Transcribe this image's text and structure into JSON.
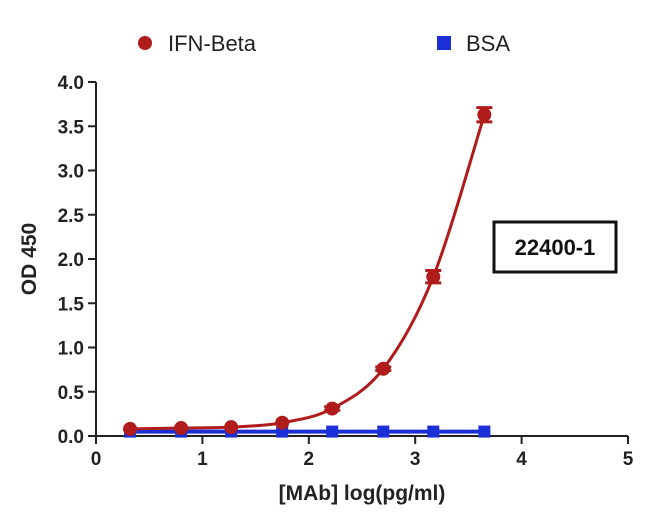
{
  "chart_data": {
    "type": "scatter",
    "xlabel": "[MAb] log(pg/ml)",
    "ylabel": "OD 450",
    "xlim": [
      0,
      5
    ],
    "ylim": [
      0,
      4
    ],
    "x_ticks": [
      0,
      1,
      2,
      3,
      4,
      5
    ],
    "y_ticks": [
      0.0,
      0.5,
      1.0,
      1.5,
      2.0,
      2.5,
      3.0,
      3.5,
      4.0
    ],
    "x_tick_labels": [
      "0",
      "1",
      "2",
      "3",
      "4",
      "5"
    ],
    "y_tick_labels": [
      "0.0",
      "0.5",
      "1.0",
      "1.5",
      "2.0",
      "2.5",
      "3.0",
      "3.5",
      "4.0"
    ],
    "grid": false,
    "legend_position": "top",
    "annotation": "22400-1",
    "series": [
      {
        "name": "IFN-Beta",
        "marker": "circle",
        "color": "#b01c1c",
        "x": [
          0.32,
          0.8,
          1.27,
          1.75,
          2.22,
          2.7,
          3.17,
          3.65
        ],
        "y": [
          0.08,
          0.09,
          0.1,
          0.15,
          0.31,
          0.76,
          1.8,
          3.63
        ],
        "error": [
          0,
          0,
          0,
          0,
          0.02,
          0.02,
          0.07,
          0.08
        ]
      },
      {
        "name": "BSA",
        "marker": "square",
        "color": "#1a2fd6",
        "x": [
          0.32,
          0.8,
          1.27,
          1.75,
          2.22,
          2.7,
          3.17,
          3.65
        ],
        "y": [
          0.05,
          0.05,
          0.05,
          0.05,
          0.05,
          0.05,
          0.05,
          0.05
        ],
        "error": [
          0,
          0,
          0,
          0,
          0,
          0,
          0,
          0
        ]
      }
    ]
  }
}
